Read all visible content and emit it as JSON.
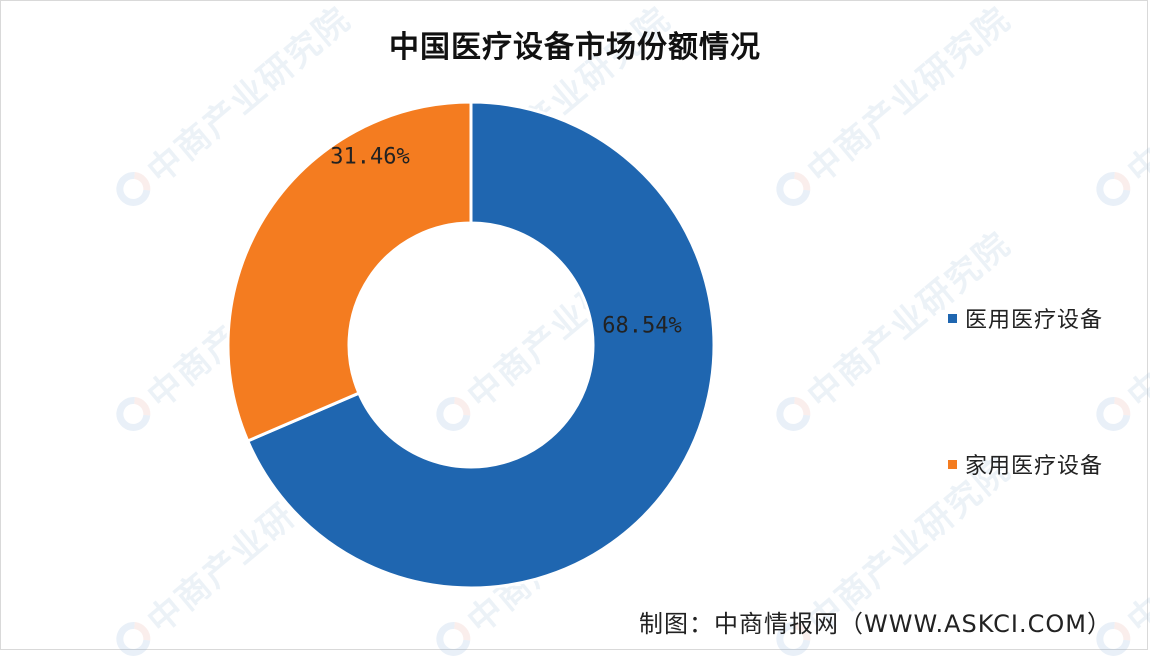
{
  "chart_data": {
    "type": "pie",
    "subtype": "donut",
    "title": "中国医疗设备市场份额情况",
    "series": [
      {
        "name": "医用医疗设备",
        "value": 68.54,
        "label": "68.54%",
        "color": "#1f66b0"
      },
      {
        "name": "家用医疗设备",
        "value": 31.46,
        "label": "31.46%",
        "color": "#f47c20"
      }
    ],
    "start_angle_deg": 0,
    "legend_position": "right"
  },
  "source_text": "制图：中商情报网（WWW.ASKCI.COM）",
  "watermark_text": "中商产业研究院"
}
